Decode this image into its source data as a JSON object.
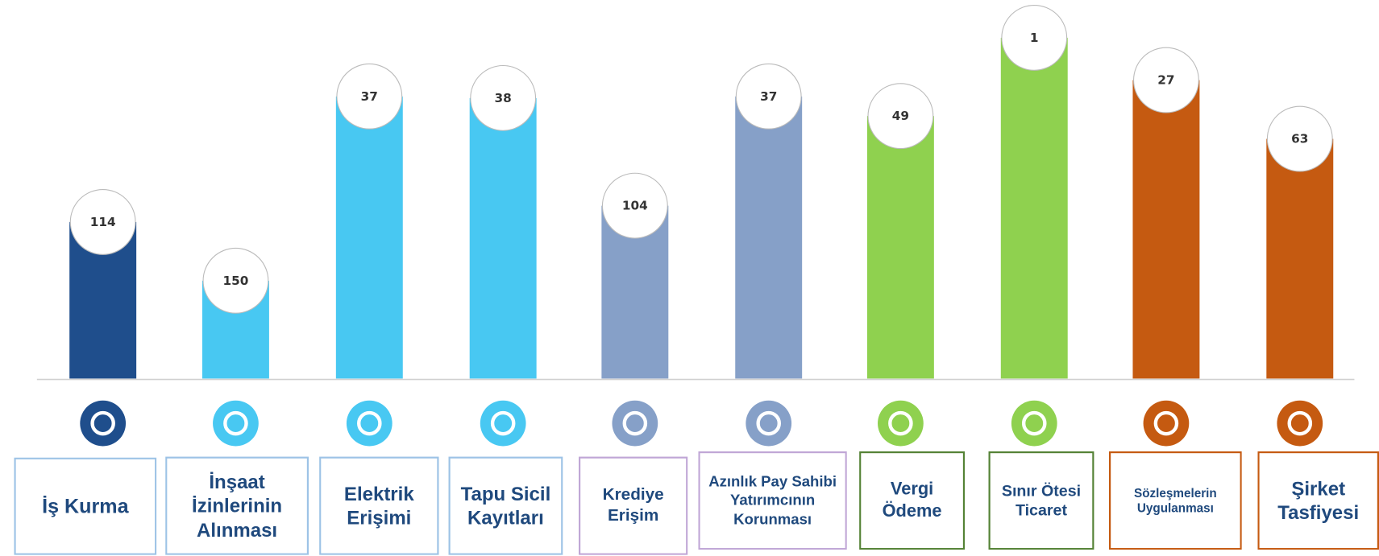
{
  "chart_data": {
    "type": "bar",
    "categories": [
      "İş Kurma",
      "İnşaat İzinlerinin Alınması",
      "Elektrik Erişimi",
      "Tapu Sicil Kayıtları",
      "Krediye Erişim",
      "Azınlık Pay Sahibi Yatırımcının Korunması",
      "Vergi Ödeme",
      "Sınır Ötesi Ticaret",
      "Sözleşmelerin Uygulanması",
      "Şirket Tasfiyesi"
    ],
    "values": [
      114,
      150,
      37,
      38,
      104,
      37,
      49,
      1,
      27,
      63
    ],
    "colors": [
      "#1f4e8c",
      "#48c8f2",
      "#48c8f2",
      "#48c8f2",
      "#86a0c8",
      "#86a0c8",
      "#8fd14f",
      "#8fd14f",
      "#c55a11",
      "#c55a11"
    ],
    "ylim": [
      210,
      0
    ]
  }
}
